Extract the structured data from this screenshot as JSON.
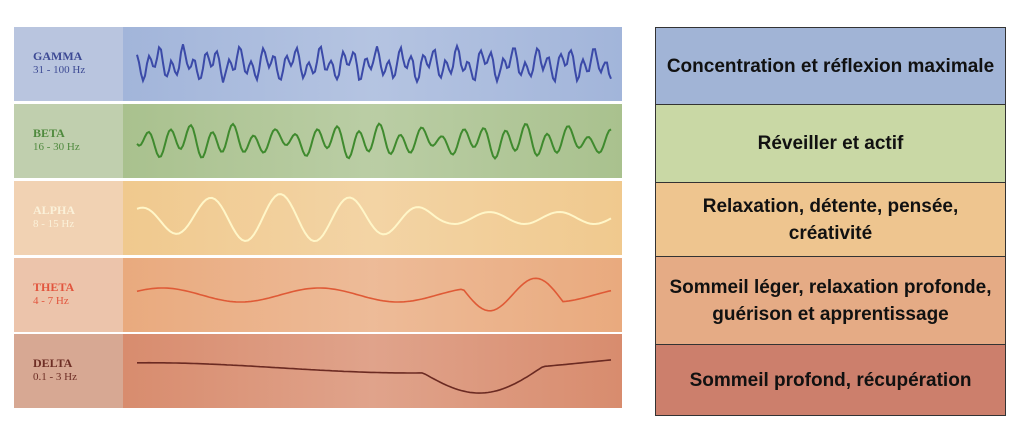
{
  "bands": [
    {
      "name": "GAMMA",
      "freq": "31 - 100 Hz",
      "description": "Concentration et réflexion maximale",
      "label_bg": "#b9c5df",
      "wave_bg": "#a2b5da",
      "text_color": "#3d4a94",
      "wave_color": "#3b4aa8",
      "cell_color": "#a1b4d6"
    },
    {
      "name": "BETA",
      "freq": "16 - 30 Hz",
      "description": "Réveiller et actif",
      "label_bg": "#c0cfae",
      "wave_bg": "#a9c18e",
      "text_color": "#4f8a3e",
      "wave_color": "#3f8a2e",
      "cell_color": "#c9d8a5"
    },
    {
      "name": "ALPHA",
      "freq": "8 - 15 Hz",
      "description": "Relaxation, détente, pensée, créativité",
      "label_bg": "#f1d2b3",
      "wave_bg": "#f0c98e",
      "text_color": "#fbf1d9",
      "wave_color": "#fff6c8",
      "cell_color": "#eec58f"
    },
    {
      "name": "THETA",
      "freq": "4 - 7 Hz",
      "description": "Sommeil léger, relaxation profonde, guérison et apprentissage",
      "label_bg": "#ecc4ab",
      "wave_bg": "#e9aa7e",
      "text_color": "#e2553d",
      "wave_color": "#df5a36",
      "cell_color": "#e5ab85"
    },
    {
      "name": "DELTA",
      "freq": "0.1 - 3 Hz",
      "description": "Sommeil profond, récupération",
      "label_bg": "#d7a893",
      "wave_bg": "#d88c6e",
      "text_color": "#6e2e25",
      "wave_color": "#6b2a22",
      "cell_color": "#cc7f6c"
    }
  ]
}
